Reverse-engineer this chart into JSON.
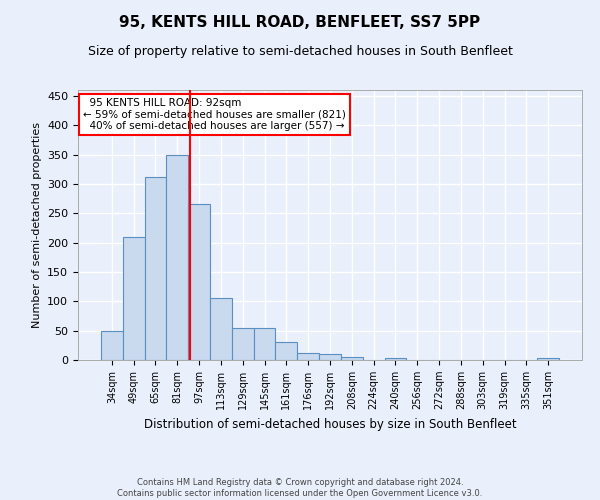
{
  "title": "95, KENTS HILL ROAD, BENFLEET, SS7 5PP",
  "subtitle": "Size of property relative to semi-detached houses in South Benfleet",
  "xlabel": "Distribution of semi-detached houses by size in South Benfleet",
  "ylabel": "Number of semi-detached properties",
  "bar_values": [
    50,
    210,
    312,
    350,
    265,
    105,
    55,
    55,
    30,
    12,
    10,
    5,
    0,
    4,
    0,
    0,
    0,
    0,
    0,
    0,
    4
  ],
  "bin_labels": [
    "34sqm",
    "49sqm",
    "65sqm",
    "81sqm",
    "97sqm",
    "113sqm",
    "129sqm",
    "145sqm",
    "161sqm",
    "176sqm",
    "192sqm",
    "208sqm",
    "224sqm",
    "240sqm",
    "256sqm",
    "272sqm",
    "288sqm",
    "303sqm",
    "319sqm",
    "335sqm",
    "351sqm"
  ],
  "bar_color": "#c9d9ee",
  "bar_edge_color": "#5a8fc2",
  "property_label": "95 KENTS HILL ROAD: 92sqm",
  "pct_smaller": 59,
  "pct_smaller_n": 821,
  "pct_larger": 40,
  "pct_larger_n": 557,
  "vline_color": "red",
  "annotation_box_color": "#ffffff",
  "annotation_box_edge": "red",
  "ylim": [
    0,
    460
  ],
  "yticks": [
    0,
    50,
    100,
    150,
    200,
    250,
    300,
    350,
    400,
    450
  ],
  "footer_line1": "Contains HM Land Registry data © Crown copyright and database right 2024.",
  "footer_line2": "Contains public sector information licensed under the Open Government Licence v3.0.",
  "bg_color": "#eaf0fb",
  "grid_color": "#ffffff",
  "title_fontsize": 11,
  "subtitle_fontsize": 9,
  "label_fontsize": 8,
  "annotation_fontsize": 7.5,
  "footer_fontsize": 6
}
